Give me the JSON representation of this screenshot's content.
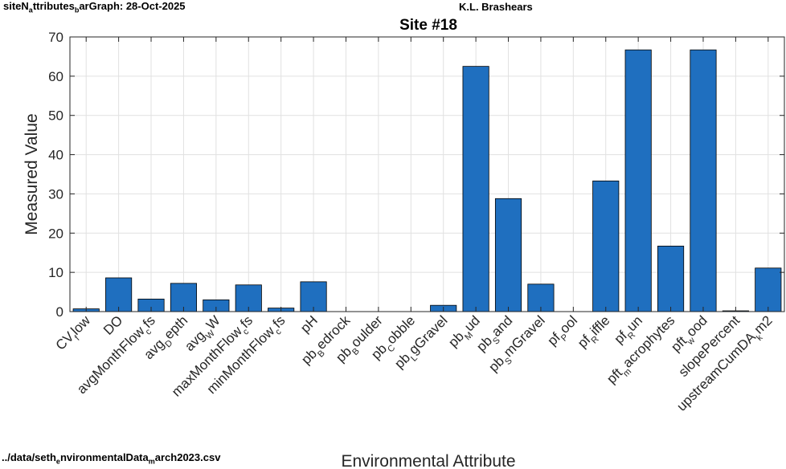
{
  "header": {
    "left_base": "siteN",
    "left_sub1": "a",
    "left_mid": "ttributes",
    "left_sub2": "b",
    "left_rest": "arGraph:  28-Oct-2025",
    "center": "K.L. Brashears"
  },
  "footer": {
    "path_base": "../data/seth",
    "path_sub1": "e",
    "path_mid": "nvironmentalData",
    "path_sub2": "m",
    "path_rest": "arch2023.csv"
  },
  "chart_data": {
    "type": "bar",
    "title": "Site #18",
    "xlabel": "Environmental Attribute",
    "ylabel": "Measured Value",
    "ylim": [
      0,
      70
    ],
    "yticks": [
      0,
      10,
      20,
      30,
      40,
      50,
      60,
      70
    ],
    "grid": true,
    "bar_color": "#1f6fbf",
    "categories": [
      {
        "base": "CV",
        "sub": "f",
        "rest": "low"
      },
      {
        "base": "DO",
        "sub": "",
        "rest": ""
      },
      {
        "base": "avgMonthFlow",
        "sub": "c",
        "rest": "fs"
      },
      {
        "base": "avg",
        "sub": "D",
        "rest": "epth"
      },
      {
        "base": "avg",
        "sub": "W",
        "rest": "W"
      },
      {
        "base": "maxMonthFlow",
        "sub": "c",
        "rest": "fs"
      },
      {
        "base": "minMonthFlow",
        "sub": "c",
        "rest": "fs"
      },
      {
        "base": "pH",
        "sub": "",
        "rest": ""
      },
      {
        "base": "pb",
        "sub": "B",
        "rest": "edrock"
      },
      {
        "base": "pb",
        "sub": "B",
        "rest": "oulder"
      },
      {
        "base": "pb",
        "sub": "C",
        "rest": "obble"
      },
      {
        "base": "pb",
        "sub": "L",
        "rest": "gGravel"
      },
      {
        "base": "pb",
        "sub": "M",
        "rest": "ud"
      },
      {
        "base": "pb",
        "sub": "S",
        "rest": "and"
      },
      {
        "base": "pb",
        "sub": "S",
        "rest": "mGravel"
      },
      {
        "base": "pf",
        "sub": "P",
        "rest": "ool"
      },
      {
        "base": "pf",
        "sub": "R",
        "rest": "iffle"
      },
      {
        "base": "pf",
        "sub": "R",
        "rest": "un"
      },
      {
        "base": "pft",
        "sub": "m",
        "rest": "acrophytes"
      },
      {
        "base": "pft",
        "sub": "w",
        "rest": "ood"
      },
      {
        "base": "slopePercent",
        "sub": "",
        "rest": ""
      },
      {
        "base": "upstreamCumDA",
        "sub": "k",
        "rest": "m2"
      }
    ],
    "values": [
      0.7,
      8.6,
      3.2,
      7.2,
      3.0,
      6.8,
      0.9,
      7.6,
      0,
      0,
      0,
      1.6,
      62.5,
      28.8,
      7.0,
      0,
      33.3,
      66.7,
      16.7,
      66.7,
      0.2,
      11.1
    ]
  }
}
